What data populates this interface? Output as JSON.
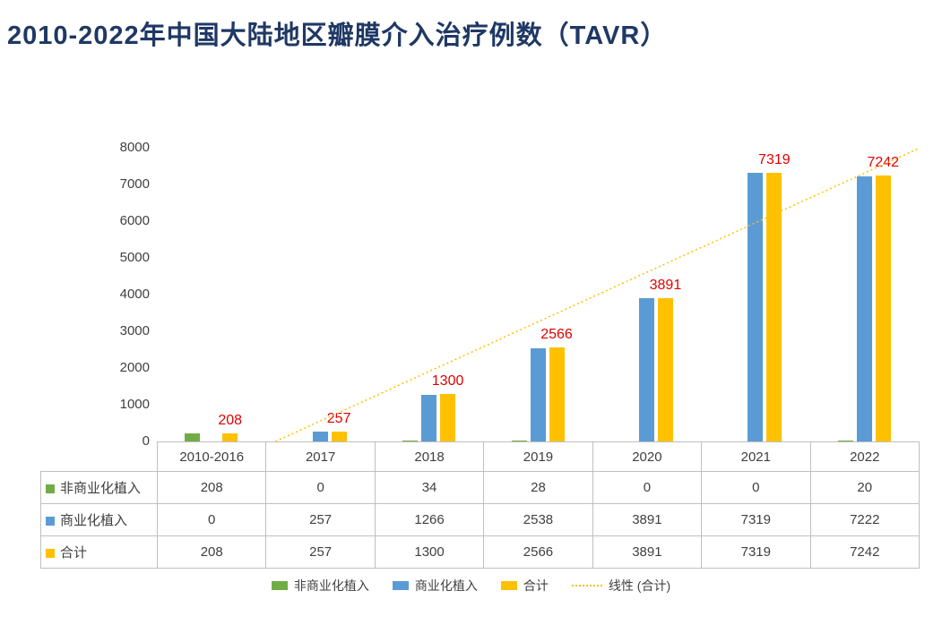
{
  "title": "2010-2022年中国大陆地区瓣膜介入治疗例数（TAVR）",
  "colors": {
    "title": "#1F3864",
    "text": "#404040",
    "table_border": "#BFBFBF",
    "background": "#FFFFFF"
  },
  "chart_data": {
    "type": "bar",
    "title": "2010-2022年中国大陆地区瓣膜介入治疗例数（TAVR）",
    "categories": [
      "2010-2016",
      "2017",
      "2018",
      "2019",
      "2020",
      "2021",
      "2022"
    ],
    "series": [
      {
        "name": "非商业化植入",
        "color": "#70AD47",
        "values": [
          208,
          0,
          34,
          28,
          0,
          0,
          20
        ]
      },
      {
        "name": "商业化植入",
        "color": "#5B9BD5",
        "values": [
          0,
          257,
          1266,
          2538,
          3891,
          7319,
          7222
        ]
      },
      {
        "name": "合计",
        "color": "#FFC000",
        "values": [
          208,
          257,
          1300,
          2566,
          3891,
          7319,
          7242
        ]
      }
    ],
    "data_labels": {
      "series": "合计",
      "color": "#E00000",
      "values": [
        208,
        257,
        1300,
        2566,
        3891,
        7319,
        7242
      ]
    },
    "trendline": {
      "name": "线性 (合计)",
      "series": "合计",
      "color": "#FFC000",
      "style": "dotted"
    },
    "ylim": [
      0,
      8000
    ],
    "ytick_step": 1000,
    "grid": false,
    "legend_position": "bottom",
    "data_table": true,
    "xlabel": "",
    "ylabel": ""
  }
}
